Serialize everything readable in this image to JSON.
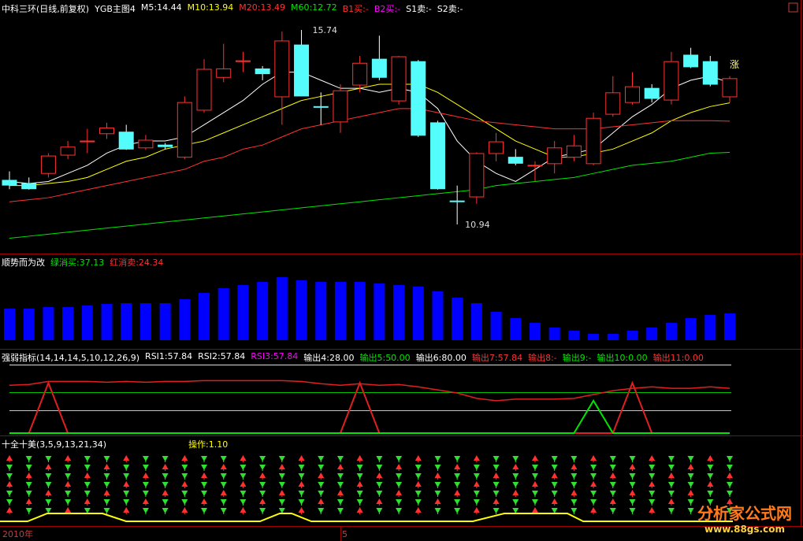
{
  "chart_data": [
    {
      "type": "candlestick",
      "title": "中科三环(日线,前复权)",
      "subtitle": "YGB主图4",
      "open": [
        12.03,
        11.95,
        12.2,
        12.65,
        12.98,
        13.18,
        13.22,
        12.83,
        12.9,
        12.6,
        13.76,
        14.57,
        14.96,
        14.78,
        14.09,
        15.37,
        13.85,
        13.47,
        14.38,
        15.02,
        13.99,
        14.96,
        13.45,
        11.52,
        11.62,
        12.69,
        12.6,
        12.4,
        12.44,
        12.6,
        12.44,
        13.66,
        13.95,
        14.3,
        14.01,
        15.12,
        14.96,
        14.09
      ],
      "high": [
        12.25,
        12.1,
        12.7,
        13.0,
        13.3,
        13.45,
        13.4,
        13.15,
        12.95,
        14.1,
        15.02,
        15.4,
        15.2,
        14.85,
        15.7,
        15.74,
        14.2,
        14.4,
        15.1,
        15.6,
        15.1,
        15.0,
        13.5,
        11.9,
        12.72,
        13.2,
        12.8,
        12.5,
        13.0,
        13.15,
        13.7,
        14.6,
        14.7,
        14.4,
        15.2,
        15.3,
        15.1,
        14.6
      ],
      "low": [
        11.81,
        11.8,
        12.1,
        12.55,
        12.7,
        13.05,
        12.78,
        12.78,
        12.8,
        12.55,
        13.7,
        14.45,
        14.7,
        14.5,
        13.4,
        14.1,
        13.4,
        13.2,
        14.2,
        14.5,
        13.9,
        13.1,
        11.8,
        10.94,
        11.45,
        12.5,
        12.4,
        12.0,
        12.2,
        12.5,
        12.4,
        13.6,
        13.9,
        13.95,
        13.9,
        14.8,
        14.35,
        13.95
      ],
      "close": [
        11.91,
        11.82,
        12.63,
        12.85,
        13.0,
        13.32,
        12.8,
        13.02,
        12.86,
        13.95,
        14.77,
        14.78,
        14.98,
        14.66,
        15.47,
        14.11,
        13.83,
        14.24,
        14.92,
        14.57,
        15.08,
        13.14,
        11.82,
        11.5,
        12.69,
        12.98,
        12.45,
        12.4,
        12.83,
        12.88,
        13.56,
        14.19,
        14.34,
        14.05,
        14.96,
        14.83,
        14.4,
        14.54
      ],
      "up_color": "#ff3232",
      "down_color": "#54fcfc",
      "series": [
        {
          "name": "M5:14.44",
          "color": "#ffffff",
          "values": [
            12.0,
            11.95,
            12.0,
            12.2,
            12.4,
            12.7,
            12.9,
            13.0,
            13.0,
            13.1,
            13.4,
            13.7,
            14.0,
            14.4,
            14.7,
            14.7,
            14.5,
            14.3,
            14.3,
            14.2,
            14.3,
            14.2,
            13.8,
            13.0,
            12.5,
            12.2,
            12.0,
            12.3,
            12.6,
            12.7,
            12.8,
            13.2,
            13.6,
            13.9,
            14.3,
            14.5,
            14.6,
            14.44
          ]
        },
        {
          "name": "M10:13.94",
          "color": "#ffff00",
          "values": [
            11.9,
            11.9,
            11.95,
            12.0,
            12.1,
            12.3,
            12.5,
            12.6,
            12.8,
            12.9,
            13.0,
            13.2,
            13.4,
            13.6,
            13.8,
            14.0,
            14.1,
            14.2,
            14.3,
            14.4,
            14.4,
            14.4,
            14.2,
            13.9,
            13.6,
            13.3,
            13.0,
            12.8,
            12.6,
            12.6,
            12.7,
            12.8,
            13.0,
            13.2,
            13.5,
            13.7,
            13.85,
            13.94
          ]
        },
        {
          "name": "M20:13.49",
          "color": "#ff3232",
          "values": [
            11.5,
            11.55,
            11.6,
            11.7,
            11.8,
            11.9,
            12.0,
            12.1,
            12.2,
            12.3,
            12.5,
            12.6,
            12.8,
            12.9,
            13.1,
            13.3,
            13.4,
            13.5,
            13.6,
            13.7,
            13.8,
            13.8,
            13.7,
            13.6,
            13.5,
            13.45,
            13.4,
            13.35,
            13.3,
            13.3,
            13.3,
            13.35,
            13.4,
            13.45,
            13.5,
            13.5,
            13.5,
            13.49
          ]
        },
        {
          "name": "M60:12.72",
          "color": "#00e600",
          "values": [
            10.6,
            10.65,
            10.7,
            10.75,
            10.8,
            10.85,
            10.9,
            10.95,
            11.0,
            11.05,
            11.1,
            11.15,
            11.2,
            11.25,
            11.3,
            11.35,
            11.4,
            11.45,
            11.5,
            11.55,
            11.6,
            11.65,
            11.7,
            11.75,
            11.8,
            11.9,
            11.95,
            12.0,
            12.05,
            12.1,
            12.2,
            12.3,
            12.4,
            12.45,
            12.5,
            12.6,
            12.7,
            12.72
          ]
        }
      ],
      "signals": [
        {
          "name": "B1买:-",
          "color": "#ff3232"
        },
        {
          "name": "B2买:-",
          "color": "#ff00ff"
        },
        {
          "name": "S1卖:-",
          "color": "#ffffff"
        },
        {
          "name": "S2卖:-",
          "color": "#ffffff"
        }
      ],
      "max_label": "15.74",
      "min_label": "10.94",
      "annotation": "涨",
      "ylim": [
        10.26,
        16.48
      ]
    },
    {
      "type": "bar",
      "title": "顺势而为改",
      "legend": [
        {
          "text": "绿消买:37.13",
          "color": "#00e600"
        },
        {
          "text": "红消卖:24.34",
          "color": "#ff3232"
        }
      ],
      "values": [
        40,
        40,
        42,
        42,
        44,
        46,
        47,
        47,
        47,
        52,
        60,
        66,
        70,
        74,
        80,
        76,
        74,
        74,
        74,
        72,
        70,
        68,
        62,
        54,
        47,
        36,
        28,
        22,
        16,
        12,
        8,
        8,
        12,
        16,
        22,
        28,
        32,
        34
      ],
      "color": "#0000ff",
      "ylim": [
        0,
        107
      ]
    },
    {
      "type": "line",
      "title": "强弱指标(14,14,14,5,10,12,26,9)",
      "legend": [
        {
          "text": "RSI1:57.84",
          "color": "#ffffff"
        },
        {
          "text": "RSI2:57.84",
          "color": "#ffffff"
        },
        {
          "text": "RSI3:57.84",
          "color": "#ff00ff"
        },
        {
          "text": "输出4:28.00",
          "color": "#ffffff"
        },
        {
          "text": "输出5:50.00",
          "color": "#00e600"
        },
        {
          "text": "输出6:80.00",
          "color": "#ffffff"
        },
        {
          "text": "输出7:57.84",
          "color": "#ff3232"
        },
        {
          "text": "输出8:-",
          "color": "#ff3232"
        },
        {
          "text": "输出9:-",
          "color": "#00e600"
        },
        {
          "text": "输出10:0.00",
          "color": "#00e600"
        },
        {
          "text": "输出11:0.00",
          "color": "#ff3232"
        }
      ],
      "lines": [
        {
          "color": "#e02020",
          "values": [
            62,
            63,
            67,
            67,
            67,
            66,
            67,
            66,
            67,
            67,
            68,
            68,
            68,
            68,
            68,
            67,
            64,
            62,
            64,
            62,
            63,
            60,
            56,
            52,
            45,
            42,
            44,
            44,
            44,
            45,
            50,
            55,
            58,
            60,
            58,
            58,
            60,
            58
          ]
        },
        {
          "color": "#e02020",
          "values": [
            0,
            0,
            65,
            0,
            0,
            0,
            0,
            0,
            0,
            0,
            0,
            0,
            0,
            0,
            0,
            0,
            0,
            0,
            65,
            0,
            0,
            0,
            0,
            0,
            0,
            0,
            0,
            0,
            0,
            0,
            0,
            0,
            65,
            0,
            0,
            0,
            0,
            0
          ]
        },
        {
          "color": "#00e600",
          "values": [
            0,
            0,
            0,
            0,
            0,
            0,
            0,
            0,
            0,
            0,
            0,
            0,
            0,
            0,
            0,
            0,
            0,
            0,
            0,
            0,
            0,
            0,
            0,
            0,
            0,
            0,
            0,
            0,
            0,
            0,
            42,
            0,
            0,
            0,
            0,
            0,
            0,
            0
          ]
        }
      ],
      "ylim": [
        0,
        100
      ]
    },
    {
      "type": "signal",
      "title": "十全十美(3,5,9,13,21,34)",
      "legend": [
        {
          "text": "操作:1.10",
          "color": "#ffff00"
        }
      ]
    }
  ],
  "x_axis": {
    "labels": [
      "2010年",
      "5"
    ]
  },
  "watermark": {
    "title": "分析家公式网",
    "url": "www.88gs.com"
  }
}
